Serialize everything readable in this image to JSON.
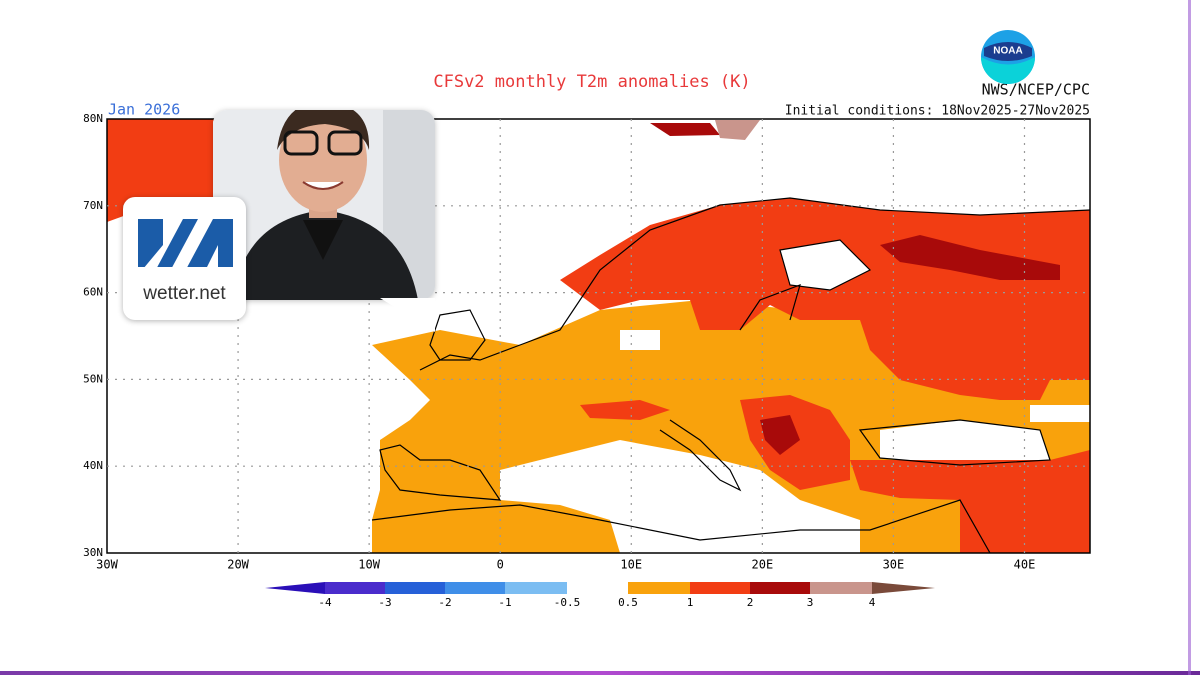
{
  "header": {
    "title": "CFSv2 monthly T2m anomalies (K)",
    "month": "Jan 2026",
    "agency": "NWS/NCEP/CPC",
    "initial_conditions": "Initial conditions: 18Nov2025-27Nov2025",
    "agency_logo": "NOAA"
  },
  "map": {
    "lat_labels": [
      "80N",
      "70N",
      "60N",
      "50N",
      "40N",
      "30N"
    ],
    "lon_labels": [
      "30W",
      "20W",
      "10W",
      "0",
      "10E",
      "20E",
      "30E",
      "40E"
    ]
  },
  "colorbar": {
    "labels": [
      "-4",
      "-3",
      "-2",
      "-1",
      "-0.5",
      "0.5",
      "1",
      "2",
      "3",
      "4"
    ]
  },
  "overlay": {
    "brand": "wetter.net"
  }
}
